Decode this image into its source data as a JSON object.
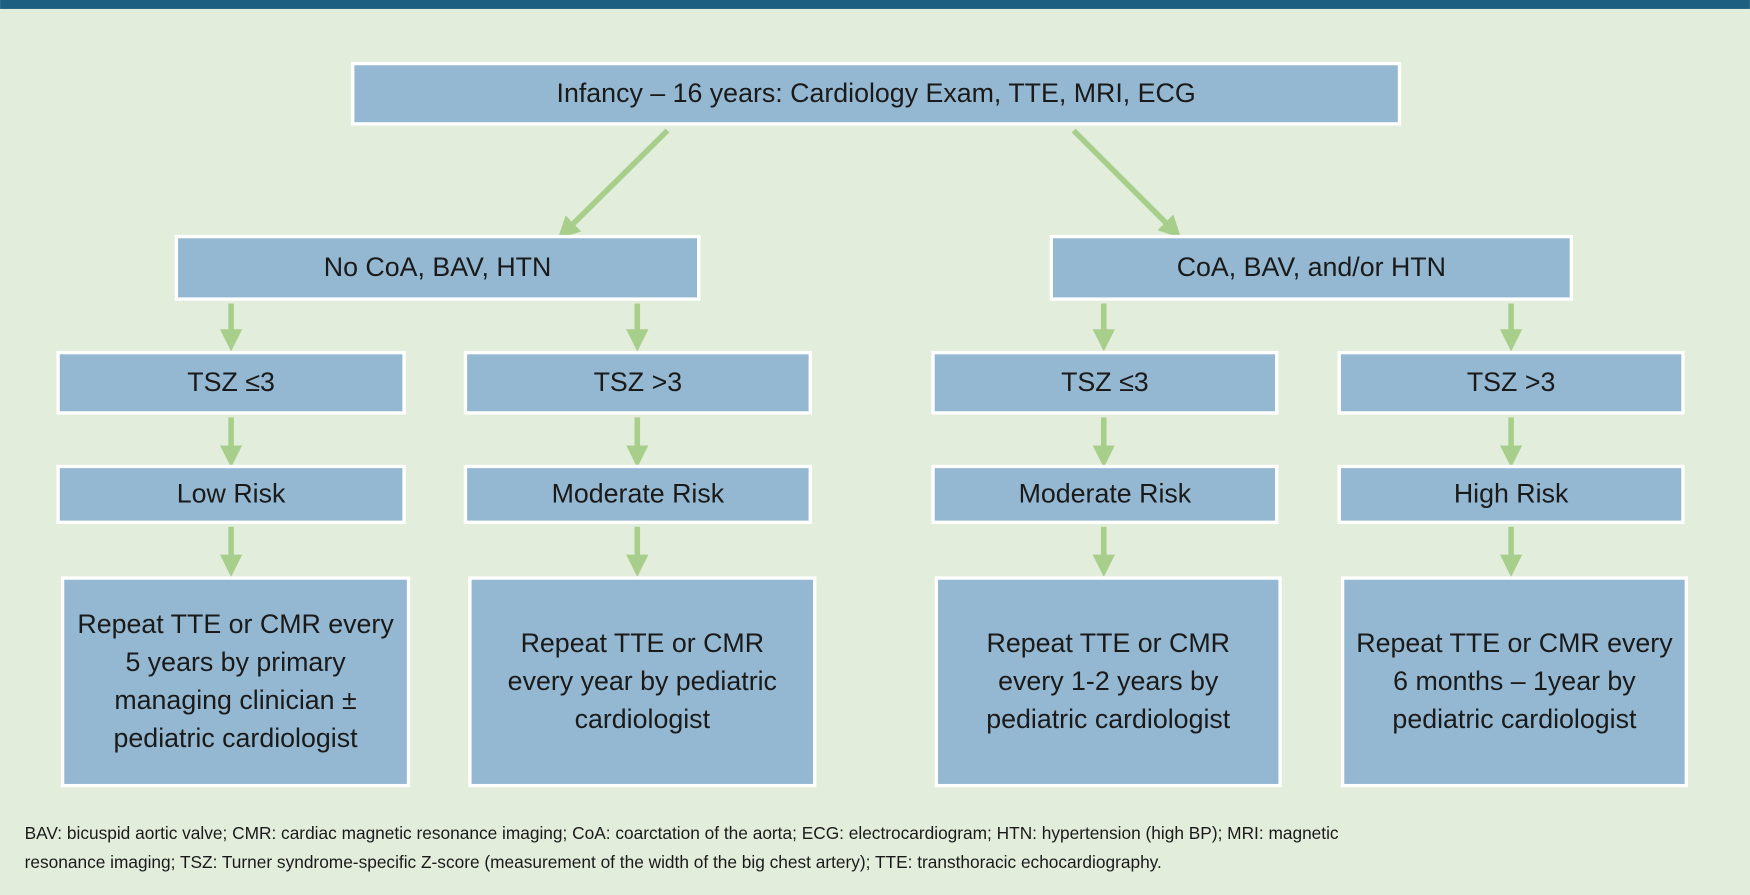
{
  "nodes": [
    {
      "lines": [
        "Infancy – 16 years: Cardiology Exam, TTE, MRI, ECG"
      ]
    },
    {
      "lines": [
        "No CoA, BAV, HTN"
      ]
    },
    {
      "lines": [
        "CoA, BAV, and/or HTN"
      ]
    },
    {
      "lines": [
        "TSZ ≤3"
      ]
    },
    {
      "lines": [
        "TSZ >3"
      ]
    },
    {
      "lines": [
        "TSZ ≤3"
      ]
    },
    {
      "lines": [
        "TSZ >3"
      ]
    },
    {
      "lines": [
        "Low Risk"
      ]
    },
    {
      "lines": [
        "Moderate Risk"
      ]
    },
    {
      "lines": [
        "Moderate Risk"
      ]
    },
    {
      "lines": [
        "High Risk"
      ]
    },
    {
      "lines": [
        "Repeat TTE or CMR every",
        "5 years by primary",
        "managing clinician ±",
        "pediatric cardiologist"
      ]
    },
    {
      "lines": [
        "Repeat TTE or CMR",
        "every year by pediatric",
        "cardiologist"
      ]
    },
    {
      "lines": [
        "Repeat TTE or CMR",
        "every 1-2 years by",
        "pediatric cardiologist"
      ]
    },
    {
      "lines": [
        "Repeat TTE or CMR every",
        "6 months – 1year by",
        "pediatric cardiologist"
      ]
    }
  ],
  "footnote": {
    "lines": [
      "BAV: bicuspid aortic valve; CMR: cardiac magnetic resonance imaging; CoA: coarctation of the aorta; ECG: electrocardiogram; HTN: hypertension (high BP); MRI: magnetic",
      "resonance imaging; TSZ: Turner syndrome-specific Z-score (measurement of the width of the big chest artery); TTE: transthoracic echocardiography."
    ]
  }
}
